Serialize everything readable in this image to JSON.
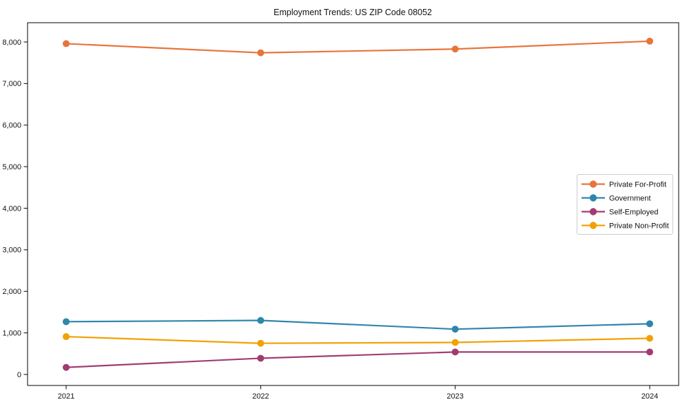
{
  "chart_data": {
    "type": "line",
    "title": "Employment Trends: US ZIP Code 08052",
    "categories": [
      "2021",
      "2022",
      "2023",
      "2024"
    ],
    "series": [
      {
        "name": "Private For-Profit",
        "color": "#E8743B",
        "values": [
          7960,
          7740,
          7830,
          8020
        ]
      },
      {
        "name": "Government",
        "color": "#2E86AB",
        "values": [
          1270,
          1300,
          1090,
          1220
        ]
      },
      {
        "name": "Self-Employed",
        "color": "#A23B72",
        "values": [
          170,
          390,
          540,
          540
        ]
      },
      {
        "name": "Private Non-Profit",
        "color": "#F2A104",
        "values": [
          910,
          750,
          770,
          870
        ]
      }
    ],
    "y_ticks": [
      0,
      1000,
      2000,
      3000,
      4000,
      5000,
      6000,
      7000,
      8000
    ],
    "y_tick_labels": [
      "0",
      "1,000",
      "2,000",
      "3,000",
      "4,000",
      "5,000",
      "6,000",
      "7,000",
      "8,000"
    ],
    "ylim": [
      0,
      8000
    ],
    "xlabel": "",
    "ylabel": "",
    "grid": false,
    "legend_position": "center-right",
    "marker": "circle",
    "axis_color": "#000000",
    "plot_background": "#ffffff"
  }
}
